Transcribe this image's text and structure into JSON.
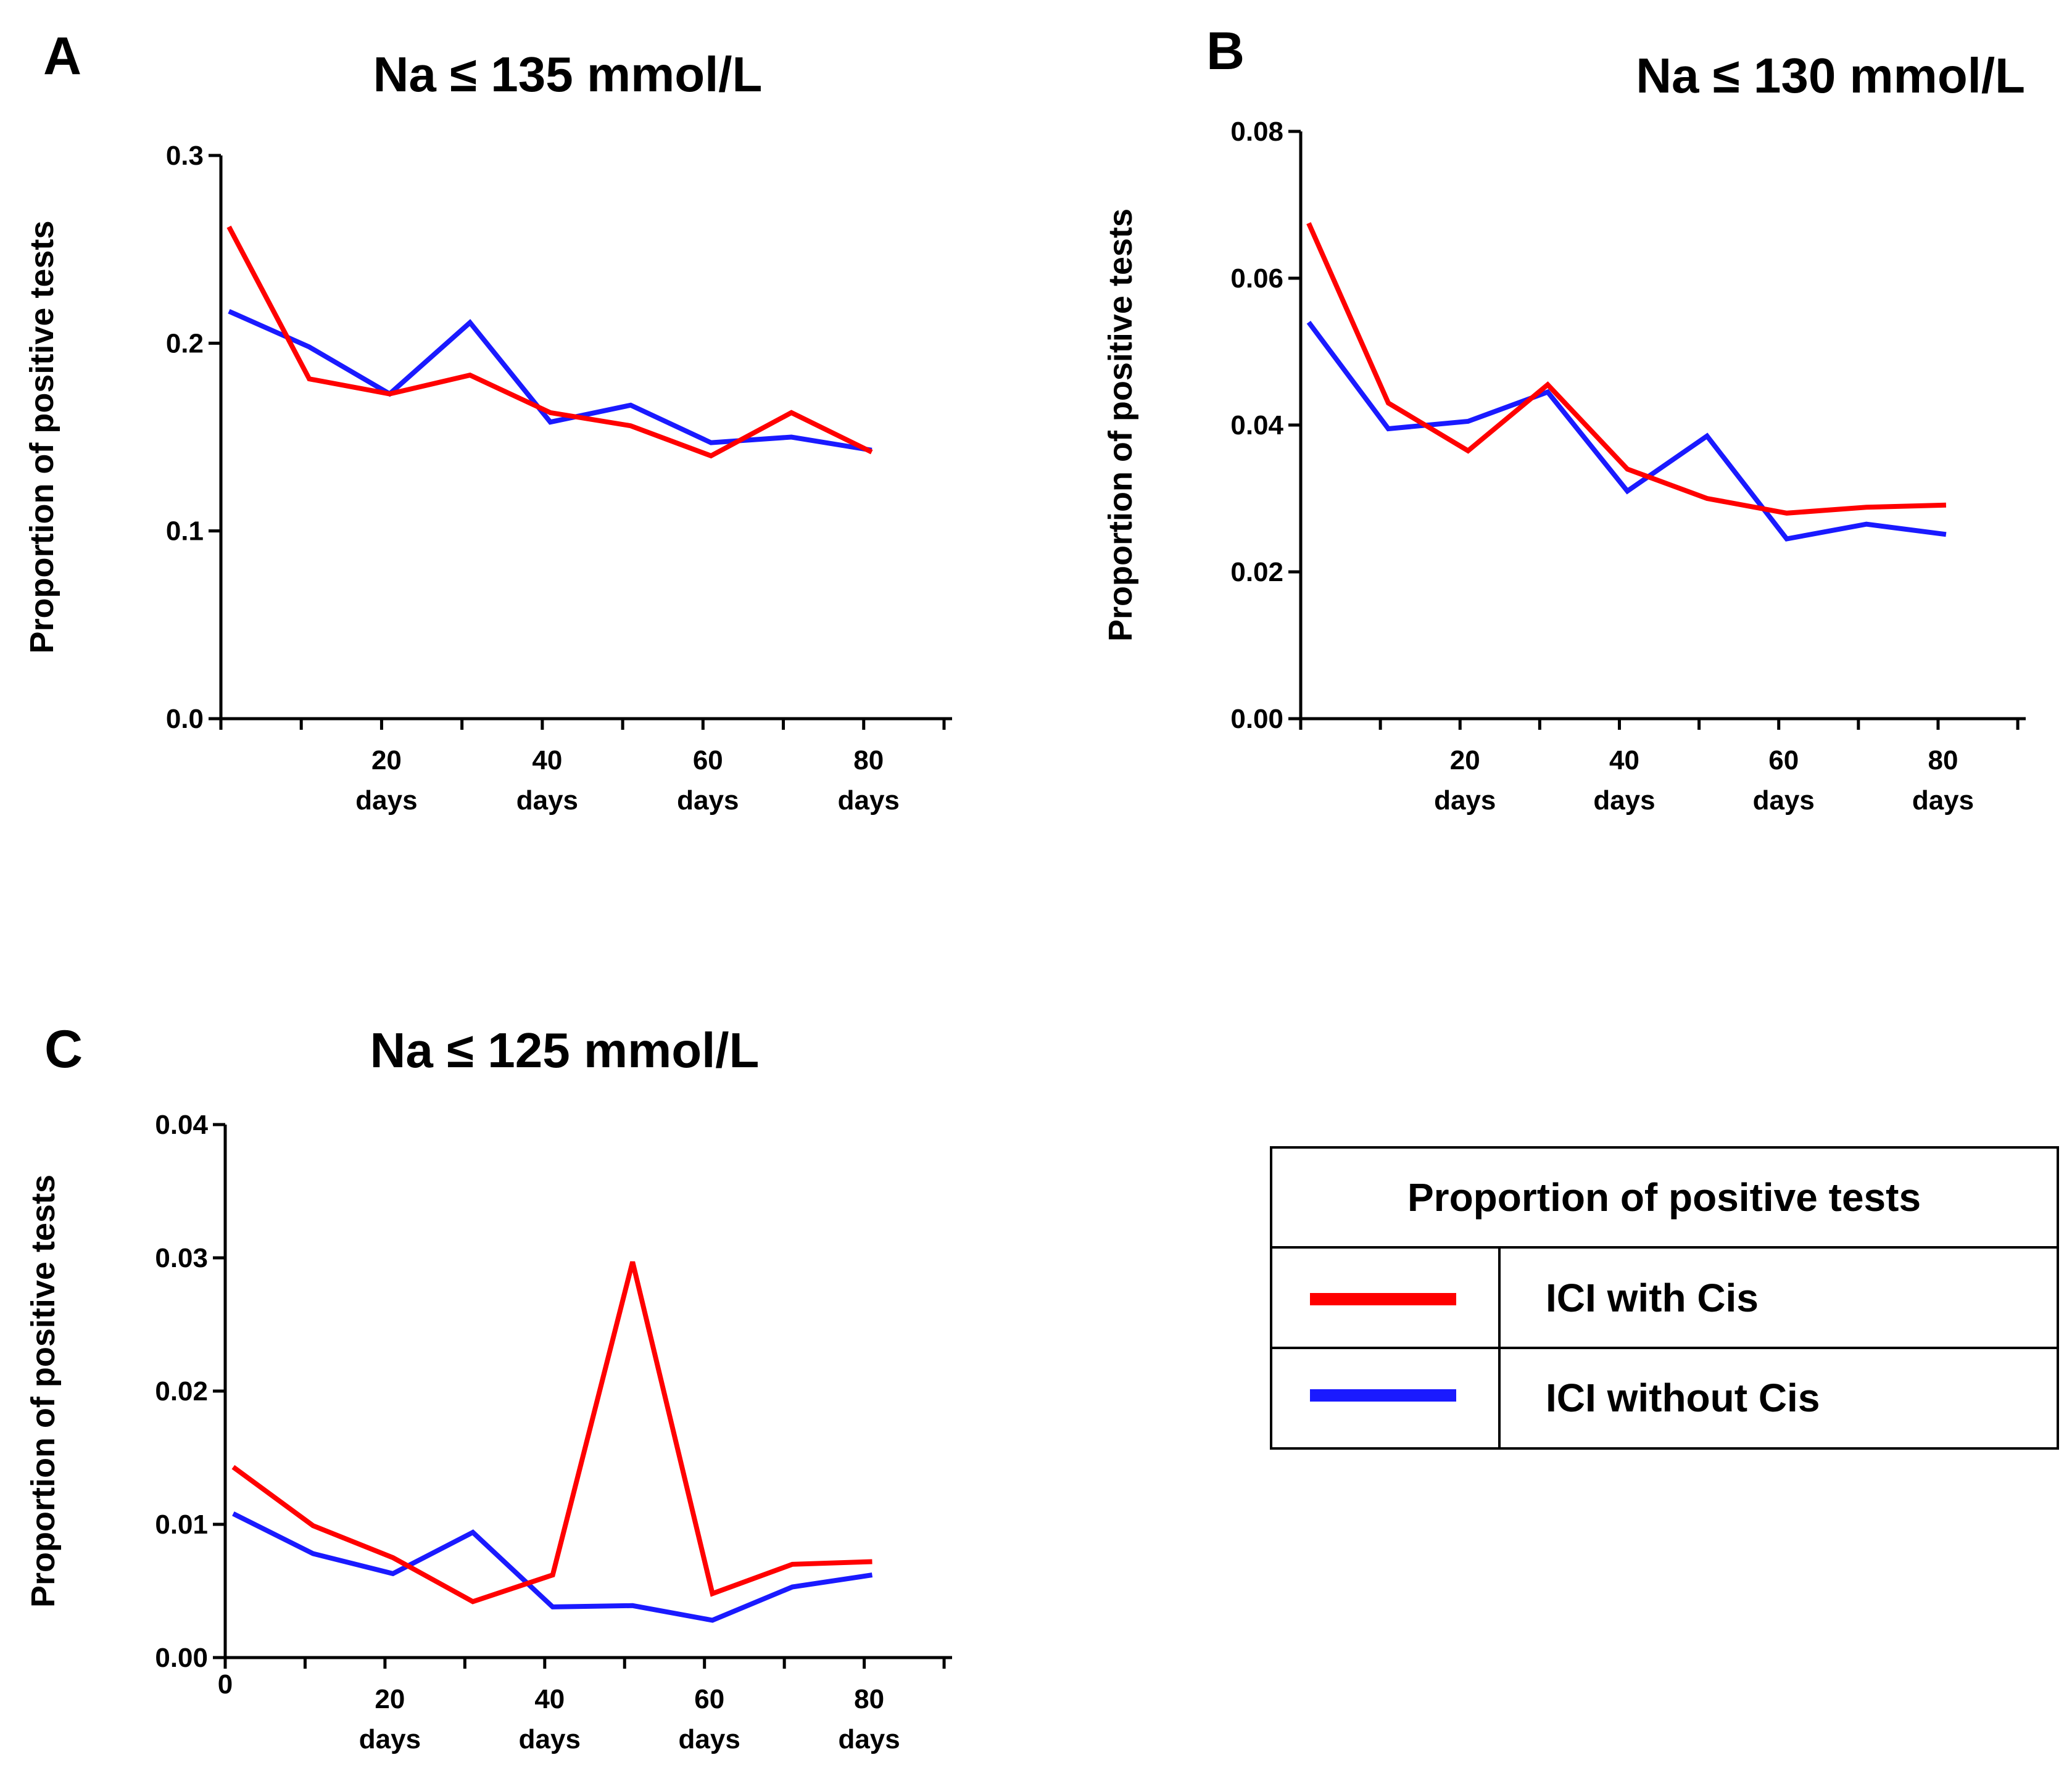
{
  "chart_data": [
    {
      "type": "line",
      "panel": "A",
      "title": "Na ≤ 135 mmol/L",
      "xlabel": "",
      "ylabel": "Proportion of positive tests",
      "x": [
        1,
        11,
        21,
        31,
        41,
        51,
        61,
        71,
        81
      ],
      "xticks": [
        {
          "value": 20,
          "label": "20",
          "sub": "days"
        },
        {
          "value": 40,
          "label": "40",
          "sub": "days"
        },
        {
          "value": 60,
          "label": "60",
          "sub": "days"
        },
        {
          "value": 80,
          "label": "80",
          "sub": "days"
        }
      ],
      "yticks": [
        "0.0",
        "0.1",
        "0.2",
        "0.3"
      ],
      "xlim": [
        0,
        91
      ],
      "ylim": [
        0,
        0.3
      ],
      "series": [
        {
          "name": "ICI with Cis",
          "color": "#ff0000",
          "values": [
            0.262,
            0.181,
            0.173,
            0.183,
            0.163,
            0.156,
            0.14,
            0.163,
            0.142
          ]
        },
        {
          "name": "ICI without Cis",
          "color": "#1a1aff",
          "values": [
            0.217,
            0.198,
            0.173,
            0.211,
            0.158,
            0.167,
            0.147,
            0.15,
            0.143
          ]
        }
      ]
    },
    {
      "type": "line",
      "panel": "B",
      "title": "Na ≤ 130 mmol/L",
      "xlabel": "",
      "ylabel": "Proportion of positive tests",
      "x": [
        1,
        11,
        21,
        31,
        41,
        51,
        61,
        71,
        81
      ],
      "xticks": [
        {
          "value": 20,
          "label": "20",
          "sub": "days"
        },
        {
          "value": 40,
          "label": "40",
          "sub": "days"
        },
        {
          "value": 60,
          "label": "60",
          "sub": "days"
        },
        {
          "value": 80,
          "label": "80",
          "sub": "days"
        }
      ],
      "yticks": [
        "0.00",
        "0.02",
        "0.04",
        "0.06",
        "0.08"
      ],
      "xlim": [
        0,
        91
      ],
      "ylim": [
        0,
        0.08
      ],
      "series": [
        {
          "name": "ICI with Cis",
          "color": "#ff0000",
          "values": [
            0.0675,
            0.043,
            0.0365,
            0.0455,
            0.034,
            0.03,
            0.028,
            0.0288,
            0.0291
          ]
        },
        {
          "name": "ICI without Cis",
          "color": "#1a1aff",
          "values": [
            0.054,
            0.0395,
            0.0405,
            0.0445,
            0.031,
            0.0385,
            0.0245,
            0.0265,
            0.0251
          ]
        }
      ]
    },
    {
      "type": "line",
      "panel": "C",
      "title": "Na ≤ 125 mmol/L",
      "xlabel": "",
      "ylabel": "Proportion of positive tests",
      "x": [
        1,
        11,
        21,
        31,
        41,
        51,
        61,
        71,
        81
      ],
      "xticks": [
        {
          "value": 0,
          "label": "0",
          "sub": ""
        },
        {
          "value": 20,
          "label": "20",
          "sub": "days"
        },
        {
          "value": 40,
          "label": "40",
          "sub": "days"
        },
        {
          "value": 60,
          "label": "60",
          "sub": "days"
        },
        {
          "value": 80,
          "label": "80",
          "sub": "days"
        }
      ],
      "yticks": [
        "0.00",
        "0.01",
        "0.02",
        "0.03",
        "0.04"
      ],
      "xlim": [
        0,
        91
      ],
      "ylim": [
        0,
        0.04
      ],
      "series": [
        {
          "name": "ICI with Cis",
          "color": "#ff0000",
          "values": [
            0.0143,
            0.0099,
            0.0075,
            0.0042,
            0.0062,
            0.0297,
            0.0048,
            0.007,
            0.0072
          ]
        },
        {
          "name": "ICI without Cis",
          "color": "#1a1aff",
          "values": [
            0.0108,
            0.0078,
            0.0063,
            0.0094,
            0.0038,
            0.0039,
            0.0028,
            0.0053,
            0.0062
          ]
        }
      ]
    }
  ],
  "legend": {
    "title": "Proportion of positive tests",
    "items": [
      {
        "label": "ICI with Cis",
        "color": "#ff0000"
      },
      {
        "label": "ICI without Cis",
        "color": "#1a1aff"
      }
    ]
  }
}
